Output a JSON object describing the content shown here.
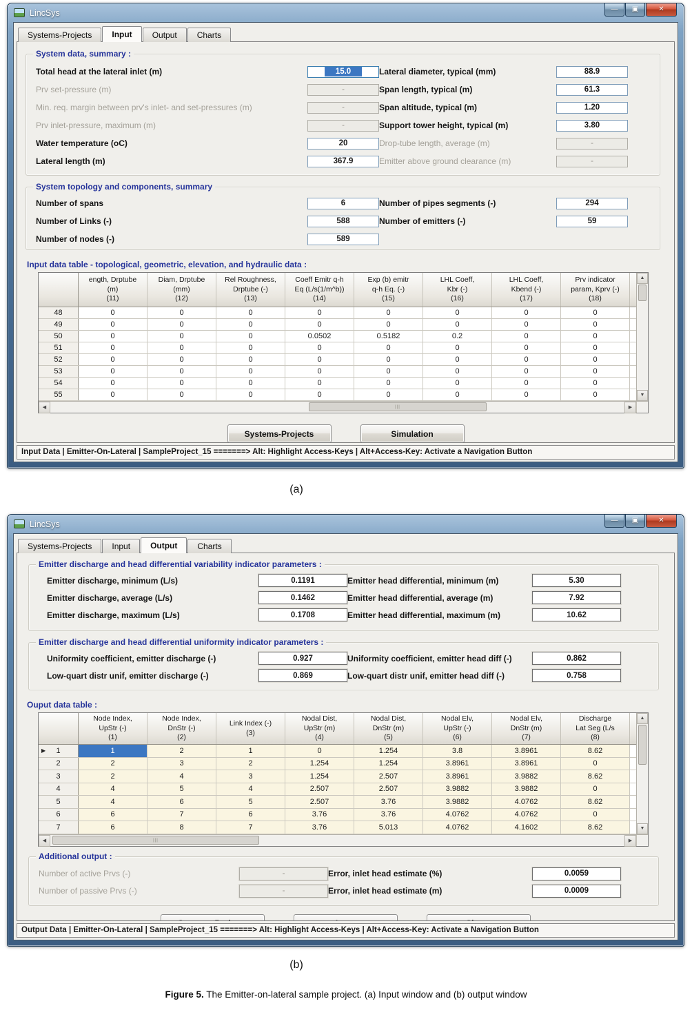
{
  "colors": {
    "section_title": "#27359b",
    "selection": "#3c77c2",
    "output_row_bg": "#faf5e1",
    "close_red": "#c4402a"
  },
  "figure": {
    "label_a": "(a)",
    "label_b": "(b)",
    "caption_bold": "Figure 5.",
    "caption_rest": " The Emitter-on-lateral sample project. (a) Input window and (b) output window"
  },
  "window_a": {
    "title": "LincSys",
    "window_controls": [
      "minimize",
      "maximize",
      "close"
    ],
    "tabs": [
      {
        "label": "Systems-Projects",
        "active": false
      },
      {
        "label": "Input",
        "active": true
      },
      {
        "label": "Output",
        "active": false
      },
      {
        "label": "Charts",
        "active": false
      }
    ],
    "system_data": {
      "title": "System data, summary :",
      "left": [
        {
          "label": "Total head at the lateral inlet  (m)",
          "value": "15.0",
          "state": "selected"
        },
        {
          "label": "Prv set-pressure (m)",
          "value": "-",
          "state": "disabled"
        },
        {
          "label": "Min. req. margin between prv's inlet- and set-pressures (m)",
          "value": "-",
          "state": "disabled"
        },
        {
          "label": "Prv inlet-pressure, maximum (m)",
          "value": "-",
          "state": "disabled"
        },
        {
          "label": "Water temperature (oC)",
          "value": "20",
          "state": "normal"
        },
        {
          "label": "Lateral length (m)",
          "value": "367.9",
          "state": "normal"
        }
      ],
      "right": [
        {
          "label": "Lateral diameter, typical (mm)",
          "value": "88.9",
          "state": "normal"
        },
        {
          "label": "Span length, typical (m)",
          "value": "61.3",
          "state": "normal"
        },
        {
          "label": "Span altitude, typical (m)",
          "value": "1.20",
          "state": "normal"
        },
        {
          "label": "Support tower height, typical (m)",
          "value": "3.80",
          "state": "normal"
        },
        {
          "label": "Drop-tube length, average (m)",
          "value": "-",
          "state": "disabled"
        },
        {
          "label": "Emitter above ground clearance (m)",
          "value": "-",
          "state": "disabled"
        }
      ]
    },
    "topology": {
      "title": "System topology and components, summary",
      "left": [
        {
          "label": "Number of spans",
          "value": "6",
          "state": "normal"
        },
        {
          "label": "Number of Links (-)",
          "value": "588",
          "state": "normal"
        },
        {
          "label": "Number of nodes (-)",
          "value": "589",
          "state": "normal"
        }
      ],
      "right": [
        {
          "label": "Number of pipes segments (-)",
          "value": "294",
          "state": "normal"
        },
        {
          "label": "Number of emitters (-)",
          "value": "59",
          "state": "normal"
        }
      ]
    },
    "input_table": {
      "title": "Input data table - topological, geometric, elevation, and hydraulic data :",
      "columns": [
        [
          "ength, Drptube",
          "(m)",
          "(11)"
        ],
        [
          "Diam, Drptube",
          "(mm)",
          "(12)"
        ],
        [
          "Rel Roughness,",
          "Drptube (-)",
          "(13)"
        ],
        [
          "Coeff Emitr q-h",
          "Eq (L/s(1/m^b))",
          "(14)"
        ],
        [
          "Exp (b) emitr",
          "q-h Eq. (-)",
          "(15)"
        ],
        [
          "LHL Coeff,",
          "Kbr (-)",
          "(16)"
        ],
        [
          "LHL Coeff,",
          "Kbend (-)",
          "(17)"
        ],
        [
          "Prv indicator",
          "param, Kprv (-)",
          "(18)"
        ]
      ],
      "rows": [
        {
          "header": "48",
          "cells": [
            "0",
            "0",
            "0",
            "0",
            "0",
            "0",
            "0",
            "0"
          ]
        },
        {
          "header": "49",
          "cells": [
            "0",
            "0",
            "0",
            "0",
            "0",
            "0",
            "0",
            "0"
          ]
        },
        {
          "header": "50",
          "cells": [
            "0",
            "0",
            "0",
            "0.0502",
            "0.5182",
            "0.2",
            "0",
            "0"
          ]
        },
        {
          "header": "51",
          "cells": [
            "0",
            "0",
            "0",
            "0",
            "0",
            "0",
            "0",
            "0"
          ]
        },
        {
          "header": "52",
          "cells": [
            "0",
            "0",
            "0",
            "0",
            "0",
            "0",
            "0",
            "0"
          ]
        },
        {
          "header": "53",
          "cells": [
            "0",
            "0",
            "0",
            "0",
            "0",
            "0",
            "0",
            "0"
          ]
        },
        {
          "header": "54",
          "cells": [
            "0",
            "0",
            "0",
            "0",
            "0",
            "0",
            "0",
            "0"
          ]
        },
        {
          "header": "55",
          "cells": [
            "0",
            "0",
            "0",
            "0",
            "0",
            "0",
            "0",
            "0"
          ]
        }
      ]
    },
    "buttons": [
      "Systems-Projects",
      "Simulation"
    ],
    "status": "Input Data  |  Emitter-On-Lateral  | SampleProject_15  =======>   Alt: Highlight Access-Keys  |  Alt+Access-Key: Activate a Navigation Button"
  },
  "window_b": {
    "title": "LincSys",
    "window_controls": [
      "minimize",
      "maximize",
      "close"
    ],
    "tabs": [
      {
        "label": "Systems-Projects",
        "active": false
      },
      {
        "label": "Input",
        "active": false
      },
      {
        "label": "Output",
        "active": true
      },
      {
        "label": "Charts",
        "active": false
      }
    ],
    "variability": {
      "title": "Emitter discharge and head differential variability indicator parameters :",
      "left": [
        {
          "label": "Emitter discharge, minimum  (L/s)",
          "value": "0.1191",
          "state": "normal"
        },
        {
          "label": "Emitter discharge, average (L/s)",
          "value": "0.1462",
          "state": "normal"
        },
        {
          "label": "Emitter discharge, maximum (L/s)",
          "value": "0.1708",
          "state": "normal"
        }
      ],
      "right": [
        {
          "label": "Emitter head differential, minimum (m)",
          "value": "5.30",
          "state": "normal"
        },
        {
          "label": "Emitter head differential, average  (m)",
          "value": "7.92",
          "state": "normal"
        },
        {
          "label": "Emitter head differential, maximum (m)",
          "value": "10.62",
          "state": "normal"
        }
      ]
    },
    "uniformity": {
      "title": "Emitter discharge and head differential uniformity indicator parameters :",
      "left": [
        {
          "label": "Uniformity coefficient, emitter discharge (-)",
          "value": "0.927",
          "state": "normal"
        },
        {
          "label": "Low-quart distr unif, emitter discharge (-)",
          "value": "0.869",
          "state": "normal"
        }
      ],
      "right": [
        {
          "label": "Uniformity coefficient, emitter head diff (-)",
          "value": "0.862",
          "state": "normal"
        },
        {
          "label": "Low-quart distr unif, emitter head diff (-)",
          "value": "0.758",
          "state": "normal"
        }
      ]
    },
    "output_table": {
      "title": "Ouput data table :",
      "columns": [
        [
          "Node Index,",
          "UpStr (-)",
          "(1)"
        ],
        [
          "Node Index,",
          "DnStr (-)",
          "(2)"
        ],
        [
          "Link Index (-)",
          "(3)"
        ],
        [
          "Nodal Dist,",
          "UpStr (m)",
          "(4)"
        ],
        [
          "Nodal Dist,",
          "DnStr (m)",
          "(5)"
        ],
        [
          "Nodal Elv,",
          "UpStr (-)",
          "(6)"
        ],
        [
          "Nodal Elv,",
          "DnStr (m)",
          "(7)"
        ],
        [
          "Discharge",
          "Lat Seg (L/s",
          "(8)"
        ]
      ],
      "pointer_row": 0,
      "selected_row": 0,
      "selected_col": 0,
      "rows": [
        {
          "header": "1",
          "cells": [
            "1",
            "2",
            "1",
            "0",
            "1.254",
            "3.8",
            "3.8961",
            "8.62"
          ]
        },
        {
          "header": "2",
          "cells": [
            "2",
            "3",
            "2",
            "1.254",
            "1.254",
            "3.8961",
            "3.8961",
            "0"
          ]
        },
        {
          "header": "3",
          "cells": [
            "2",
            "4",
            "3",
            "1.254",
            "2.507",
            "3.8961",
            "3.9882",
            "8.62"
          ]
        },
        {
          "header": "4",
          "cells": [
            "4",
            "5",
            "4",
            "2.507",
            "2.507",
            "3.9882",
            "3.9882",
            "0"
          ]
        },
        {
          "header": "5",
          "cells": [
            "4",
            "6",
            "5",
            "2.507",
            "3.76",
            "3.9882",
            "4.0762",
            "8.62"
          ]
        },
        {
          "header": "6",
          "cells": [
            "6",
            "7",
            "6",
            "3.76",
            "3.76",
            "4.0762",
            "4.0762",
            "0"
          ]
        },
        {
          "header": "7",
          "cells": [
            "6",
            "8",
            "7",
            "3.76",
            "5.013",
            "4.0762",
            "4.1602",
            "8.62"
          ]
        }
      ]
    },
    "additional": {
      "title": "Additional output :",
      "left": [
        {
          "label": "Number of active Prvs (-)",
          "value": "-",
          "state": "disabled"
        },
        {
          "label": "Number of passive Prvs (-)",
          "value": "-",
          "state": "disabled"
        }
      ],
      "right": [
        {
          "label": "Error, inlet head estimate (%)",
          "value": "0.0059",
          "state": "normal"
        },
        {
          "label": "Error, inlet head estimate (m)",
          "value": "0.0009",
          "state": "normal"
        }
      ]
    },
    "buttons": [
      "Systems-Projects",
      "Input",
      "Charts"
    ],
    "status": "Output Data  |  Emitter-On-Lateral  |  SampleProject_15  =======>   Alt: Highlight Access-Keys  |  Alt+Access-Key: Activate a Navigation Button"
  }
}
